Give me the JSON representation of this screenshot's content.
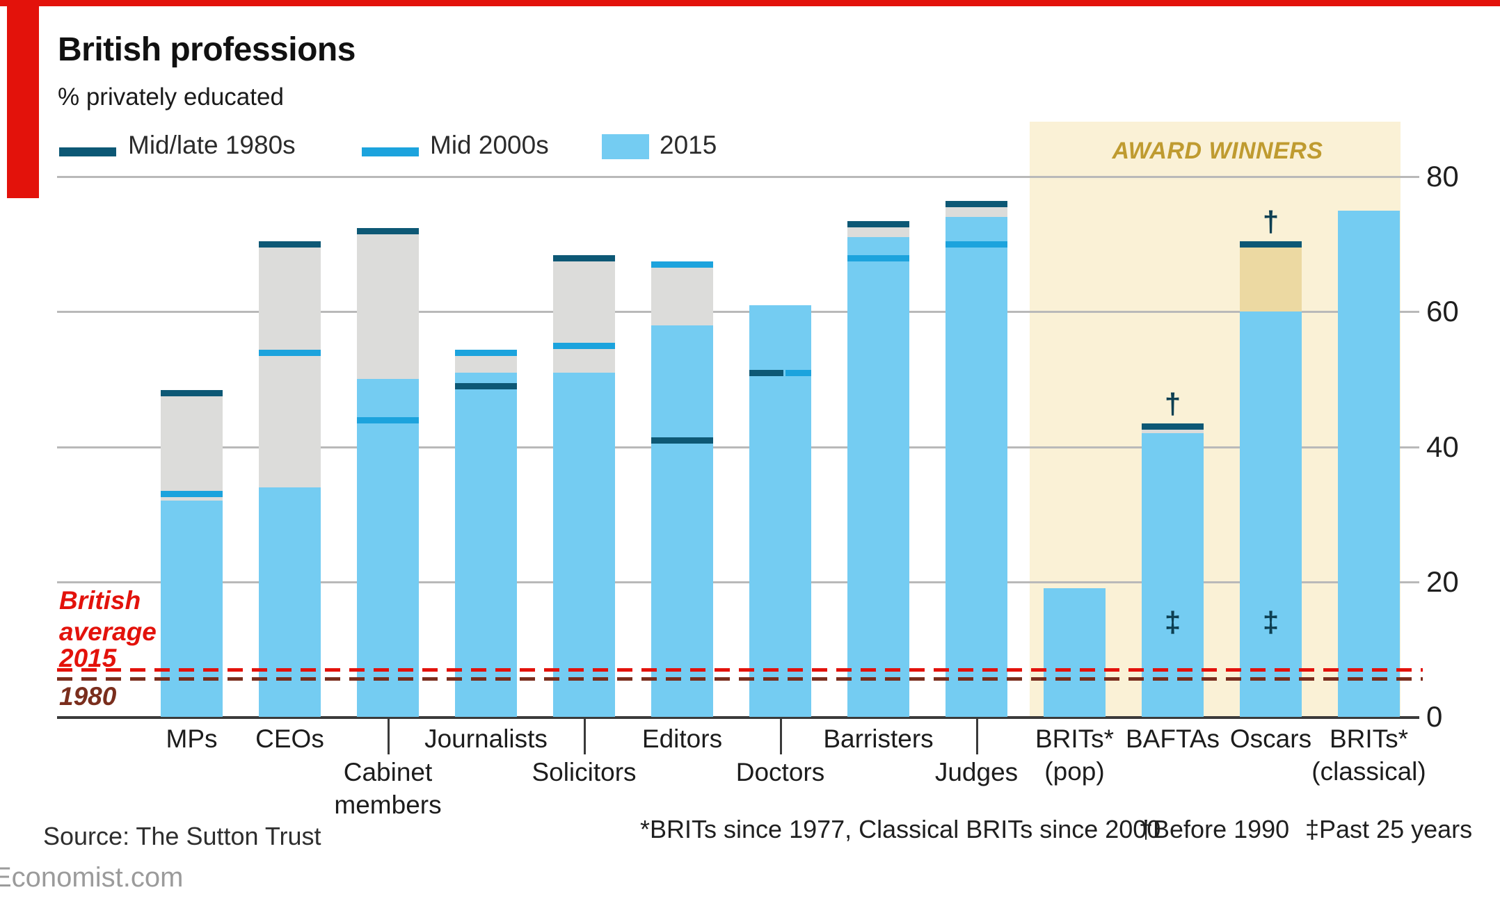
{
  "header": {
    "title": "British professions",
    "subtitle": "% privately educated"
  },
  "legend": [
    {
      "label": "Mid/late 1980s",
      "swatch": "line",
      "color": "#0d5875"
    },
    {
      "label": "Mid 2000s",
      "swatch": "line",
      "color": "#1ca3dd"
    },
    {
      "label": "2015",
      "swatch": "fill",
      "color": "#74ccf2"
    }
  ],
  "award_band": {
    "label": "AWARD WINNERS",
    "bg_color": "#faf1d6",
    "text_color": "#bf9b30"
  },
  "axis": {
    "ticks": [
      80,
      60,
      40,
      20,
      0
    ]
  },
  "average_lines": {
    "label_2015_lines": [
      "British",
      "average",
      "2015"
    ],
    "label_1980": "1980",
    "value_2015": 7,
    "value_1980": 6,
    "color_2015": "#e3120b",
    "color_1980": "#7a2e1d"
  },
  "symbols": {
    "dagger": "†",
    "double_dagger": "‡"
  },
  "chart_data": {
    "type": "bar",
    "title": "British professions",
    "ylabel": "% privately educated",
    "ylim": [
      0,
      88
    ],
    "grid": "horizontal",
    "legend_position": "top",
    "series_names": [
      "Mid/late 1980s",
      "Mid 2000s",
      "2015"
    ],
    "palette": {
      "fill_2015": "#74ccf2",
      "line_2000s": "#1ca3dd",
      "line_1980s": "#0d5875",
      "range_gray": "#dcdcda",
      "range_tan": "#ecd9a2"
    },
    "bars": [
      {
        "label": "MPs",
        "row": 1,
        "s1980s": 48,
        "s2000s": 33,
        "s2015": 32
      },
      {
        "label": "CEOs",
        "row": 1,
        "s1980s": 70,
        "s2000s": 54,
        "s2015": 34
      },
      {
        "label": "Cabinet members",
        "label_lines": [
          "Cabinet",
          "members"
        ],
        "row": 2,
        "s1980s": 72,
        "s2000s": 44,
        "s2015": 50
      },
      {
        "label": "Journalists",
        "row": 1,
        "s1980s": 49,
        "s2000s": 54,
        "s2015": 51
      },
      {
        "label": "Solicitors",
        "row": 2,
        "s1980s": 68,
        "s2000s": 55,
        "s2015": 51
      },
      {
        "label": "Editors",
        "row": 1,
        "s1980s": 41,
        "s2000s": 67,
        "s2015": 58
      },
      {
        "label": "Doctors",
        "row": 2,
        "s1980s": 51,
        "s2000s": 51,
        "s2015": 61,
        "markers_side_by_side": true
      },
      {
        "label": "Barristers",
        "row": 1,
        "s1980s": 73,
        "s2000s": 68,
        "s2015": 71
      },
      {
        "label": "Judges",
        "row": 2,
        "s1980s": 76,
        "s2000s": 70,
        "s2015": 74
      },
      {
        "label": "BRITs* (pop)",
        "label_lines": [
          "BRITs*",
          "(pop)"
        ],
        "row": 1,
        "s2015": 19,
        "award": true
      },
      {
        "label": "BAFTAs",
        "row": 1,
        "before_1990": 43,
        "past_25_years": 42,
        "award": true,
        "dagger": true,
        "double_dagger": true
      },
      {
        "label": "Oscars",
        "row": 1,
        "before_1990": 70,
        "past_25_years": 60,
        "award": true,
        "dagger": true,
        "double_dagger": true,
        "range_style": "tan"
      },
      {
        "label": "BRITs* (classical)",
        "label_lines": [
          "BRITs*",
          "(classical)"
        ],
        "row": 1,
        "s2015": 75,
        "award": true
      }
    ]
  },
  "footnotes": {
    "brits": "*BRITs since 1977, Classical BRITs since 2000",
    "dagger": "†Before 1990",
    "double_dagger": "‡Past 25 years"
  },
  "source": "Source: The Sutton Trust",
  "brand": "Economist.com"
}
